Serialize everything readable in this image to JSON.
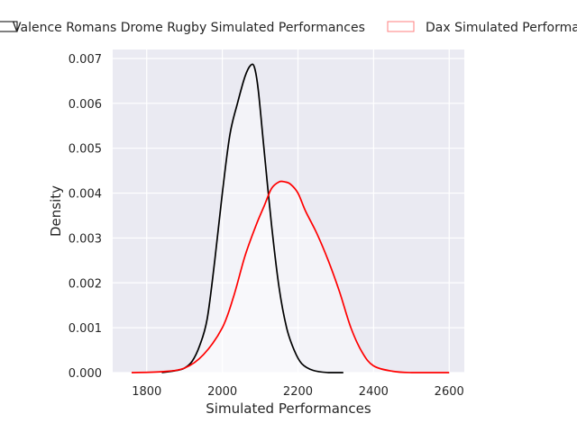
{
  "chart_data": {
    "type": "area",
    "title": "",
    "xlabel": "Simulated Performances",
    "ylabel": "Density",
    "xlim": [
      1710,
      2640
    ],
    "ylim": [
      0,
      0.0072
    ],
    "x_ticks": [
      1800,
      2000,
      2200,
      2400,
      2600
    ],
    "x_tick_labels": [
      "1800",
      "2000",
      "2200",
      "2400",
      "2600"
    ],
    "y_ticks": [
      0,
      0.001,
      0.002,
      0.003,
      0.004,
      0.005,
      0.006,
      0.007
    ],
    "y_tick_labels": [
      "0.000",
      "0.001",
      "0.002",
      "0.003",
      "0.004",
      "0.005",
      "0.006",
      "0.007"
    ],
    "grid": true,
    "legend": "top-center",
    "series": [
      {
        "name": "Valence Romans Drome Rugby Simulated Performances",
        "color": "#000000",
        "x": [
          1840,
          1880,
          1900,
          1920,
          1940,
          1960,
          1980,
          2000,
          2020,
          2040,
          2060,
          2075,
          2085,
          2095,
          2110,
          2130,
          2150,
          2170,
          2190,
          2210,
          2240,
          2280,
          2320
        ],
        "y": [
          0.0,
          5e-05,
          0.0001,
          0.00025,
          0.0006,
          0.0012,
          0.0025,
          0.004,
          0.0053,
          0.006,
          0.0066,
          0.00685,
          0.0068,
          0.0063,
          0.005,
          0.0033,
          0.0019,
          0.001,
          0.0005,
          0.0002,
          5e-05,
          0.0,
          0.0
        ]
      },
      {
        "name": "Dax Simulated Performances",
        "color": "#ff0000",
        "x": [
          1760,
          1840,
          1900,
          1950,
          2000,
          2030,
          2060,
          2090,
          2110,
          2130,
          2150,
          2165,
          2180,
          2200,
          2220,
          2250,
          2280,
          2310,
          2340,
          2370,
          2400,
          2450,
          2500,
          2600
        ],
        "y": [
          0.0,
          2e-05,
          0.0001,
          0.0004,
          0.001,
          0.0017,
          0.0026,
          0.0033,
          0.0037,
          0.0041,
          0.00425,
          0.00425,
          0.0042,
          0.004,
          0.0036,
          0.0031,
          0.0025,
          0.0018,
          0.001,
          0.00045,
          0.00015,
          3e-05,
          0.0,
          0.0
        ]
      }
    ]
  }
}
